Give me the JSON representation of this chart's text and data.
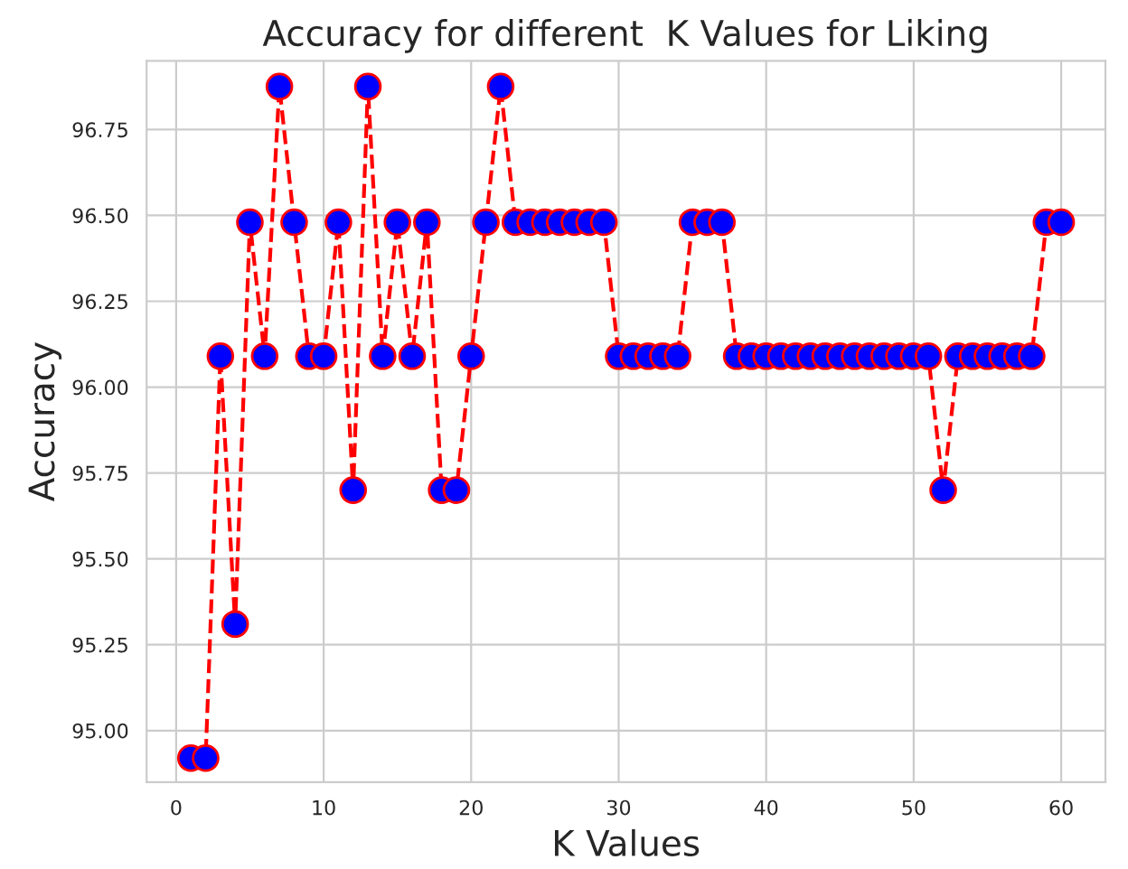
{
  "chart_data": {
    "type": "line",
    "title": "Accuracy for different  K Values for Liking",
    "xlabel": "K Values",
    "ylabel": "Accuracy",
    "x": [
      1,
      2,
      3,
      4,
      5,
      6,
      7,
      8,
      9,
      10,
      11,
      12,
      13,
      14,
      15,
      16,
      17,
      18,
      19,
      20,
      21,
      22,
      23,
      24,
      25,
      26,
      27,
      28,
      29,
      30,
      31,
      32,
      33,
      34,
      35,
      36,
      37,
      38,
      39,
      40,
      41,
      42,
      43,
      44,
      45,
      46,
      47,
      48,
      49,
      50,
      51,
      52,
      53,
      54,
      55,
      56,
      57,
      58,
      59,
      60
    ],
    "series": [
      {
        "color": "#ff0000",
        "colors": [
          "#0000ff",
          "#0000ff",
          "#0000ff",
          "#0000ff",
          "#0000ff",
          "#0000ff",
          "#0000ff",
          "#0000ff",
          "#0000ff",
          "#0000ff",
          "#0000ff",
          "#0000ff",
          "#0000ff",
          "#0000ff",
          "#0000ff",
          "#0000ff",
          "#0000ff",
          "#0000ff",
          "#0000ff",
          "#0000ff",
          "#0000ff",
          "#0000ff",
          "#0000ff",
          "#0000ff",
          "#0000ff",
          "#0000ff",
          "#0000ff",
          "#0000ff",
          "#0000ff",
          "#0000ff",
          "#0000ff",
          "#0000ff",
          "#0000ff",
          "#0000ff",
          "#0000ff",
          "#0000ff",
          "#0000ff",
          "#0000ff",
          "#0000ff",
          "#0000ff",
          "#0000ff",
          "#0000ff",
          "#0000ff",
          "#0000ff",
          "#0000ff",
          "#0000ff",
          "#0000ff",
          "#0000ff",
          "#0000ff",
          "#0000ff",
          "#0000ff",
          "#0000ff",
          "#0000ff",
          "#0000ff",
          "#0000ff",
          "#0000ff",
          "#0000ff",
          "#0000ff",
          "#0000ff",
          "#0000ff"
        ],
        "values": [
          94.92,
          94.92,
          96.09,
          95.31,
          96.48,
          96.09,
          96.875,
          96.48,
          96.09,
          96.09,
          96.48,
          95.7,
          96.875,
          96.09,
          96.48,
          96.09,
          96.48,
          95.7,
          95.7,
          96.09,
          96.48,
          96.875,
          96.48,
          96.48,
          96.48,
          96.48,
          96.48,
          96.48,
          96.48,
          96.09,
          96.09,
          96.09,
          96.09,
          96.09,
          96.48,
          96.48,
          96.48,
          96.09,
          96.09,
          96.09,
          96.09,
          96.09,
          96.09,
          96.09,
          96.09,
          96.09,
          96.09,
          96.09,
          96.09,
          96.09,
          96.09,
          95.7,
          96.09,
          96.09,
          96.09,
          96.09,
          96.09,
          96.09,
          96.48,
          96.48
        ]
      }
    ],
    "xlim": [
      -2,
      63
    ],
    "xticks": [
      0,
      10,
      20,
      30,
      40,
      50,
      60
    ],
    "ylim": [
      94.85,
      96.95
    ],
    "yticks": [
      {
        "value": 95.0,
        "label": "95.00"
      },
      {
        "value": 95.25,
        "label": "95.25"
      },
      {
        "value": 95.5,
        "label": "95.50"
      },
      {
        "value": 95.75,
        "label": "95.75"
      },
      {
        "value": 96.0,
        "label": "96.00"
      },
      {
        "value": 96.25,
        "label": "96.25"
      },
      {
        "value": 96.5,
        "label": "96.50"
      },
      {
        "value": 96.75,
        "label": "96.75"
      }
    ],
    "grid": true,
    "marker": "circle",
    "line_style": "dashed",
    "legend": false
  }
}
